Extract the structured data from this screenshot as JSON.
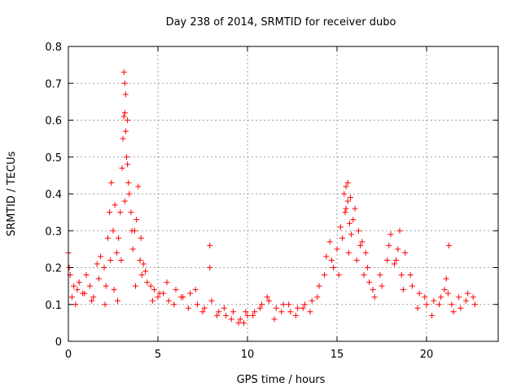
{
  "chart_data": {
    "type": "scatter",
    "title": "Day 238 of 2014, SRMTID for receiver dubo",
    "xlabel": "GPS time / hours",
    "ylabel": "SRMTID / TECUs",
    "xlim": [
      0,
      24
    ],
    "ylim": [
      0,
      0.8
    ],
    "xticks": [
      0,
      5,
      10,
      15,
      20
    ],
    "xtick_labels": [
      "0",
      "5",
      "10",
      "15",
      "20"
    ],
    "yticks": [
      0,
      0.1,
      0.2,
      0.3,
      0.4,
      0.5,
      0.6,
      0.7,
      0.8
    ],
    "ytick_labels": [
      "0",
      "0.1",
      "0.2",
      "0.3",
      "0.4",
      "0.5",
      "0.6",
      "0.7",
      "0.8"
    ],
    "grid": true,
    "marker": "+",
    "color": "#ff0000",
    "series": [
      {
        "name": "SRMTID",
        "x": [
          0.0,
          0.1,
          0.2,
          0.3,
          0.5,
          0.6,
          0.8,
          1.0,
          1.2,
          1.4,
          1.6,
          1.8,
          2.0,
          2.1,
          2.2,
          2.3,
          2.4,
          2.5,
          2.6,
          2.7,
          2.8,
          2.9,
          3.0,
          3.05,
          3.1,
          3.15,
          3.2,
          3.25,
          3.3,
          3.4,
          3.5,
          3.6,
          3.7,
          3.8,
          3.9,
          4.0,
          4.1,
          4.2,
          4.4,
          4.6,
          4.8,
          5.0,
          5.3,
          5.6,
          6.0,
          6.4,
          6.8,
          7.2,
          7.6,
          8.0,
          8.4,
          8.8,
          9.2,
          9.6,
          9.8,
          10.0,
          10.4,
          10.8,
          11.2,
          11.6,
          12.0,
          12.4,
          12.8,
          13.2,
          13.6,
          14.0,
          14.4,
          14.6,
          14.8,
          15.0,
          15.2,
          15.4,
          15.5,
          15.6,
          15.7,
          15.8,
          16.0,
          16.2,
          16.4,
          16.6,
          16.8,
          17.0,
          17.4,
          17.8,
          18.0,
          18.2,
          18.4,
          18.6,
          18.8,
          19.2,
          19.6,
          20.0,
          20.4,
          20.8,
          21.0,
          21.2,
          21.4,
          21.8,
          22.2,
          22.6,
          0.05,
          0.4,
          0.9,
          1.3,
          1.7,
          2.05,
          2.35,
          2.55,
          2.75,
          2.95,
          3.15,
          3.35,
          3.55,
          3.75,
          4.05,
          4.3,
          4.7,
          5.1,
          5.5,
          5.9,
          6.3,
          6.7,
          7.1,
          7.5,
          7.9,
          8.3,
          8.7,
          9.1,
          9.5,
          9.9,
          10.3,
          10.7,
          11.1,
          11.5,
          11.9,
          12.3,
          12.7,
          13.1,
          13.5,
          13.9,
          14.3,
          14.7,
          15.1,
          15.3,
          15.45,
          15.65,
          15.9,
          16.1,
          16.3,
          16.5,
          16.7,
          17.1,
          17.5,
          17.9,
          18.3,
          18.7,
          19.1,
          19.5,
          19.9,
          20.3,
          20.7,
          21.1,
          21.5,
          21.9,
          22.3,
          22.7,
          3.1,
          3.2,
          3.3,
          3.15,
          15.6,
          15.75,
          15.5,
          21.25,
          18.5,
          7.9
        ],
        "y": [
          0.24,
          0.18,
          0.12,
          0.15,
          0.14,
          0.16,
          0.13,
          0.18,
          0.15,
          0.12,
          0.21,
          0.23,
          0.2,
          0.15,
          0.28,
          0.35,
          0.43,
          0.3,
          0.37,
          0.24,
          0.28,
          0.35,
          0.47,
          0.55,
          0.61,
          0.62,
          0.57,
          0.5,
          0.48,
          0.4,
          0.35,
          0.25,
          0.3,
          0.33,
          0.42,
          0.22,
          0.18,
          0.21,
          0.16,
          0.15,
          0.14,
          0.12,
          0.13,
          0.11,
          0.14,
          0.12,
          0.13,
          0.1,
          0.09,
          0.11,
          0.08,
          0.07,
          0.08,
          0.06,
          0.05,
          0.07,
          0.08,
          0.1,
          0.11,
          0.09,
          0.1,
          0.08,
          0.09,
          0.1,
          0.11,
          0.15,
          0.23,
          0.27,
          0.2,
          0.25,
          0.31,
          0.4,
          0.42,
          0.38,
          0.32,
          0.29,
          0.36,
          0.3,
          0.27,
          0.24,
          0.16,
          0.14,
          0.18,
          0.22,
          0.29,
          0.21,
          0.25,
          0.18,
          0.24,
          0.15,
          0.13,
          0.1,
          0.11,
          0.12,
          0.14,
          0.13,
          0.1,
          0.12,
          0.11,
          0.12,
          0.2,
          0.1,
          0.13,
          0.11,
          0.17,
          0.1,
          0.22,
          0.14,
          0.11,
          0.22,
          0.38,
          0.43,
          0.3,
          0.15,
          0.28,
          0.19,
          0.11,
          0.13,
          0.16,
          0.1,
          0.12,
          0.09,
          0.14,
          0.08,
          0.2,
          0.07,
          0.09,
          0.06,
          0.05,
          0.08,
          0.07,
          0.09,
          0.12,
          0.06,
          0.08,
          0.1,
          0.07,
          0.09,
          0.08,
          0.12,
          0.18,
          0.22,
          0.18,
          0.28,
          0.35,
          0.24,
          0.33,
          0.22,
          0.26,
          0.18,
          0.2,
          0.12,
          0.15,
          0.26,
          0.22,
          0.14,
          0.18,
          0.09,
          0.12,
          0.07,
          0.1,
          0.17,
          0.08,
          0.09,
          0.13,
          0.1,
          0.73,
          0.67,
          0.6,
          0.7,
          0.43,
          0.39,
          0.36,
          0.26,
          0.3,
          0.26
        ]
      }
    ]
  }
}
